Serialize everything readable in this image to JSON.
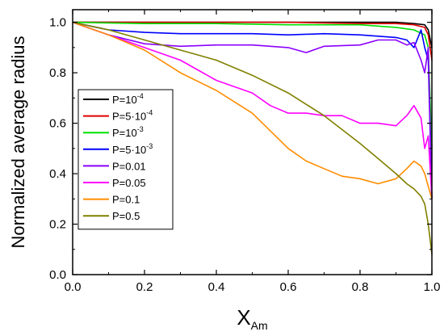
{
  "chart_data": {
    "type": "line",
    "xlabel": "X",
    "xlabel_sub": "Am",
    "ylabel": "Normalized average radius",
    "xlim": [
      0.0,
      1.0
    ],
    "ylim": [
      0.0,
      1.05
    ],
    "x_ticks": [
      "0.0",
      "0.2",
      "0.4",
      "0.6",
      "0.8",
      "1.0"
    ],
    "y_ticks": [
      "0.0",
      "0.2",
      "0.4",
      "0.6",
      "0.8",
      "1.0"
    ],
    "grid": false,
    "legend_position": "left-middle",
    "series": [
      {
        "name": "P=10",
        "name_sup": "-4",
        "color": "#000000",
        "points": [
          [
            0,
            1.0
          ],
          [
            0.2,
            1.0
          ],
          [
            0.4,
            1.0
          ],
          [
            0.6,
            1.0
          ],
          [
            0.8,
            1.0
          ],
          [
            0.9,
            1.0
          ],
          [
            0.95,
            0.995
          ],
          [
            0.98,
            0.99
          ],
          [
            0.99,
            0.97
          ],
          [
            1.0,
            0.9
          ]
        ]
      },
      {
        "name": "P=5·10",
        "name_sup": "-4",
        "color": "#e00000",
        "points": [
          [
            0,
            1.0
          ],
          [
            0.2,
            1.0
          ],
          [
            0.4,
            1.0
          ],
          [
            0.6,
            1.0
          ],
          [
            0.8,
            0.995
          ],
          [
            0.9,
            0.995
          ],
          [
            0.95,
            0.99
          ],
          [
            0.98,
            0.98
          ],
          [
            0.99,
            0.95
          ],
          [
            1.0,
            0.85
          ]
        ]
      },
      {
        "name": "P=10",
        "name_sup": "-3",
        "color": "#00e000",
        "points": [
          [
            0,
            1.0
          ],
          [
            0.2,
            0.995
          ],
          [
            0.4,
            0.995
          ],
          [
            0.6,
            0.99
          ],
          [
            0.8,
            0.99
          ],
          [
            0.9,
            0.98
          ],
          [
            0.95,
            0.97
          ],
          [
            0.98,
            0.95
          ],
          [
            0.99,
            0.9
          ],
          [
            1.0,
            0.5
          ]
        ]
      },
      {
        "name": "P=5·10",
        "name_sup": "-3",
        "color": "#0000ff",
        "points": [
          [
            0,
            1.0
          ],
          [
            0.1,
            0.97
          ],
          [
            0.2,
            0.96
          ],
          [
            0.3,
            0.955
          ],
          [
            0.4,
            0.955
          ],
          [
            0.5,
            0.955
          ],
          [
            0.6,
            0.95
          ],
          [
            0.7,
            0.955
          ],
          [
            0.8,
            0.95
          ],
          [
            0.85,
            0.945
          ],
          [
            0.9,
            0.94
          ],
          [
            0.93,
            0.93
          ],
          [
            0.95,
            0.9
          ],
          [
            0.97,
            0.97
          ],
          [
            0.98,
            0.9
          ],
          [
            0.99,
            0.85
          ],
          [
            1.0,
            0.3
          ]
        ]
      },
      {
        "name": "P=0.01",
        "name_sup": "",
        "color": "#8b00ff",
        "points": [
          [
            0,
            1.0
          ],
          [
            0.1,
            0.95
          ],
          [
            0.2,
            0.915
          ],
          [
            0.3,
            0.905
          ],
          [
            0.4,
            0.91
          ],
          [
            0.5,
            0.91
          ],
          [
            0.6,
            0.9
          ],
          [
            0.65,
            0.88
          ],
          [
            0.7,
            0.905
          ],
          [
            0.8,
            0.91
          ],
          [
            0.85,
            0.93
          ],
          [
            0.9,
            0.93
          ],
          [
            0.93,
            0.91
          ],
          [
            0.95,
            0.92
          ],
          [
            0.97,
            0.85
          ],
          [
            0.98,
            0.8
          ],
          [
            0.99,
            0.9
          ],
          [
            1.0,
            0.3
          ]
        ]
      },
      {
        "name": "P=0.05",
        "name_sup": "",
        "color": "#ff00ff",
        "points": [
          [
            0,
            1.0
          ],
          [
            0.1,
            0.95
          ],
          [
            0.2,
            0.9
          ],
          [
            0.3,
            0.85
          ],
          [
            0.4,
            0.77
          ],
          [
            0.5,
            0.72
          ],
          [
            0.55,
            0.67
          ],
          [
            0.6,
            0.64
          ],
          [
            0.65,
            0.64
          ],
          [
            0.7,
            0.63
          ],
          [
            0.75,
            0.63
          ],
          [
            0.8,
            0.6
          ],
          [
            0.85,
            0.6
          ],
          [
            0.9,
            0.59
          ],
          [
            0.93,
            0.63
          ],
          [
            0.95,
            0.67
          ],
          [
            0.97,
            0.62
          ],
          [
            0.98,
            0.5
          ],
          [
            0.99,
            0.55
          ],
          [
            1.0,
            0.3
          ]
        ]
      },
      {
        "name": "P=0.1",
        "name_sup": "",
        "color": "#ff8c00",
        "points": [
          [
            0,
            1.0
          ],
          [
            0.1,
            0.95
          ],
          [
            0.2,
            0.89
          ],
          [
            0.3,
            0.8
          ],
          [
            0.4,
            0.73
          ],
          [
            0.5,
            0.64
          ],
          [
            0.55,
            0.57
          ],
          [
            0.6,
            0.5
          ],
          [
            0.65,
            0.45
          ],
          [
            0.7,
            0.42
          ],
          [
            0.75,
            0.39
          ],
          [
            0.8,
            0.38
          ],
          [
            0.85,
            0.36
          ],
          [
            0.9,
            0.38
          ],
          [
            0.93,
            0.42
          ],
          [
            0.95,
            0.45
          ],
          [
            0.97,
            0.43
          ],
          [
            0.98,
            0.4
          ],
          [
            0.99,
            0.35
          ],
          [
            1.0,
            0.3
          ]
        ]
      },
      {
        "name": "P=0.5",
        "name_sup": "",
        "color": "#808000",
        "points": [
          [
            0,
            1.0
          ],
          [
            0.1,
            0.97
          ],
          [
            0.2,
            0.93
          ],
          [
            0.3,
            0.89
          ],
          [
            0.4,
            0.85
          ],
          [
            0.5,
            0.79
          ],
          [
            0.6,
            0.72
          ],
          [
            0.7,
            0.63
          ],
          [
            0.8,
            0.52
          ],
          [
            0.85,
            0.46
          ],
          [
            0.9,
            0.4
          ],
          [
            0.93,
            0.36
          ],
          [
            0.95,
            0.34
          ],
          [
            0.97,
            0.31
          ],
          [
            0.98,
            0.28
          ],
          [
            0.99,
            0.2
          ],
          [
            1.0,
            0.08
          ]
        ]
      }
    ]
  }
}
